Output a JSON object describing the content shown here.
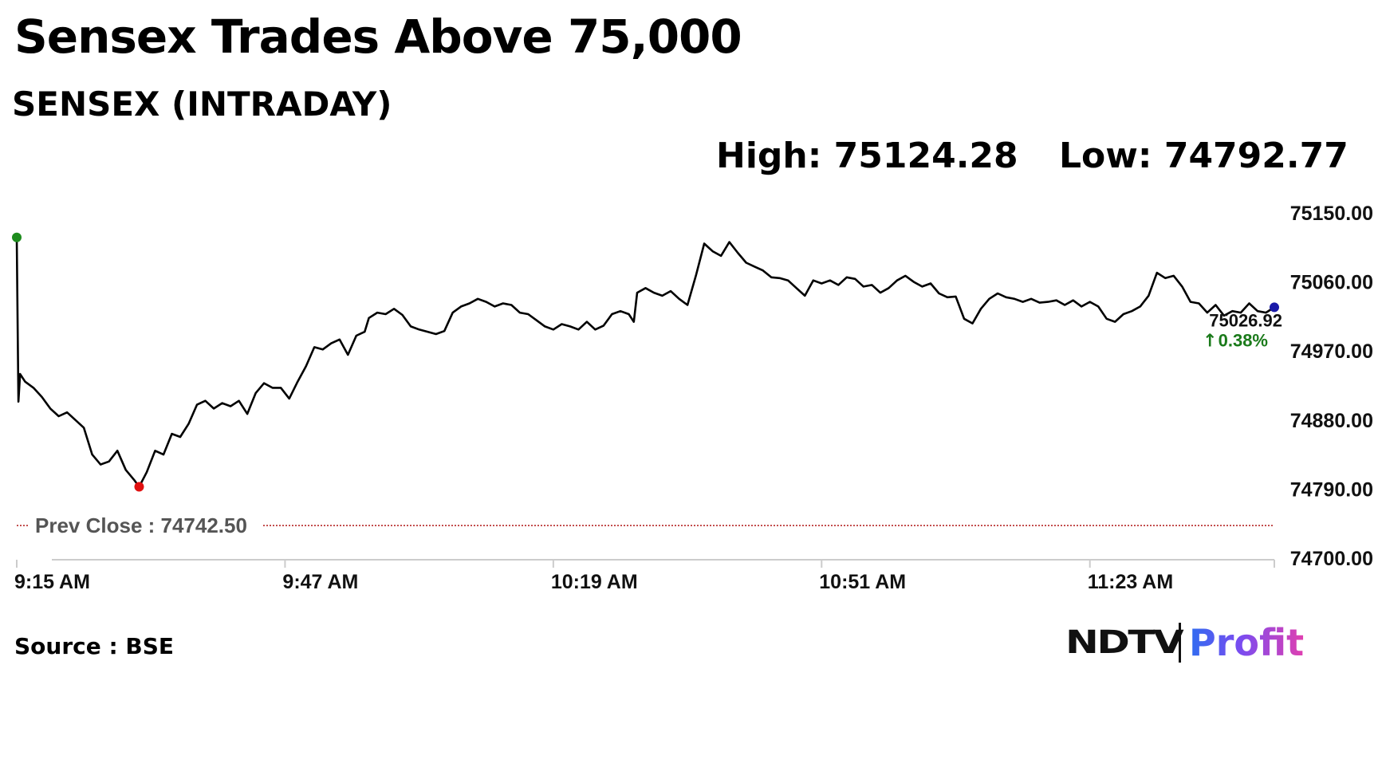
{
  "header": {
    "title": "Sensex Trades Above 75,000",
    "subtitle": "SENSEX (INTRADAY)",
    "high_text": "High: 75124.28",
    "low_text": "Low: 74792.77"
  },
  "footer": {
    "source": "Source : BSE",
    "logo_ndtv": "NDTV",
    "logo_profit": "Profit"
  },
  "colors": {
    "line": "#000000",
    "open_marker": "#1e8c1e",
    "low_marker": "#e01010",
    "last_marker": "#1a1aa8",
    "prev_close_line": "#b01818",
    "change_up": "#1a7a1a",
    "axis": "#cccccc"
  },
  "chart_data": {
    "type": "line",
    "title": "SENSEX (INTRADAY)",
    "xlabel": "",
    "ylabel": "",
    "x_ticks": [
      "9:15 AM",
      "9:47 AM",
      "10:19 AM",
      "10:51 AM",
      "11:23 AM"
    ],
    "x_tick_minutes": [
      555,
      587,
      619,
      651,
      683
    ],
    "y_ticks": [
      "75150.00",
      "75060.00",
      "74970.00",
      "74880.00",
      "74790.00",
      "74700.00"
    ],
    "ylim": [
      74700,
      75150
    ],
    "grid": false,
    "prev_close": 74742.5,
    "prev_close_label": "Prev Close : 74742.50",
    "last_value_label": "75026.92",
    "change_label": "0.38%",
    "change_arrow": "↑",
    "series": [
      {
        "points": [
          [
            555.0,
            75118
          ],
          [
            555.2,
            74904
          ],
          [
            555.4,
            74940
          ],
          [
            556.0,
            74930
          ],
          [
            557.0,
            74922
          ],
          [
            558.0,
            74910
          ],
          [
            559.0,
            74895
          ],
          [
            560.0,
            74885
          ],
          [
            561.0,
            74890
          ],
          [
            562.0,
            74880
          ],
          [
            563.0,
            74870
          ],
          [
            564.0,
            74835
          ],
          [
            565.0,
            74822
          ],
          [
            566.0,
            74826
          ],
          [
            567.0,
            74840
          ],
          [
            568.0,
            74815
          ],
          [
            569.0,
            74802
          ],
          [
            569.6,
            74793
          ],
          [
            570.5,
            74812
          ],
          [
            571.5,
            74840
          ],
          [
            572.5,
            74835
          ],
          [
            573.5,
            74862
          ],
          [
            574.5,
            74858
          ],
          [
            575.5,
            74875
          ],
          [
            576.5,
            74900
          ],
          [
            577.5,
            74905
          ],
          [
            578.5,
            74895
          ],
          [
            579.5,
            74902
          ],
          [
            580.5,
            74898
          ],
          [
            581.5,
            74905
          ],
          [
            582.5,
            74888
          ],
          [
            583.5,
            74915
          ],
          [
            584.5,
            74928
          ],
          [
            585.5,
            74922
          ],
          [
            586.5,
            74922
          ],
          [
            587.5,
            74908
          ],
          [
            588.5,
            74930
          ],
          [
            589.5,
            74950
          ],
          [
            590.5,
            74975
          ],
          [
            591.5,
            74972
          ],
          [
            592.5,
            74980
          ],
          [
            593.5,
            74985
          ],
          [
            594.5,
            74965
          ],
          [
            595.5,
            74990
          ],
          [
            596.5,
            74995
          ],
          [
            597.0,
            75013
          ],
          [
            598.0,
            75020
          ],
          [
            599.0,
            75018
          ],
          [
            600.0,
            75025
          ],
          [
            601.0,
            75017
          ],
          [
            602.0,
            75002
          ],
          [
            603.0,
            74998
          ],
          [
            604.0,
            74995
          ],
          [
            605.0,
            74992
          ],
          [
            606.0,
            74996
          ],
          [
            607.0,
            75020
          ],
          [
            608.0,
            75028
          ],
          [
            609.0,
            75032
          ],
          [
            610.0,
            75038
          ],
          [
            611.0,
            75034
          ],
          [
            612.0,
            75028
          ],
          [
            613.0,
            75032
          ],
          [
            614.0,
            75030
          ],
          [
            615.0,
            75020
          ],
          [
            616.0,
            75018
          ],
          [
            617.0,
            75010
          ],
          [
            618.0,
            75002
          ],
          [
            619.0,
            74998
          ],
          [
            620.0,
            75005
          ],
          [
            621.0,
            75002
          ],
          [
            622.0,
            74998
          ],
          [
            623.0,
            75008
          ],
          [
            624.0,
            74998
          ],
          [
            625.0,
            75003
          ],
          [
            626.0,
            75018
          ],
          [
            627.0,
            75022
          ],
          [
            628.0,
            75018
          ],
          [
            628.6,
            75008
          ],
          [
            629.0,
            75046
          ],
          [
            630.0,
            75052
          ],
          [
            631.0,
            75046
          ],
          [
            632.0,
            75042
          ],
          [
            633.0,
            75048
          ],
          [
            634.0,
            75038
          ],
          [
            635.0,
            75030
          ],
          [
            636.0,
            75068
          ],
          [
            637.0,
            75110
          ],
          [
            638.0,
            75100
          ],
          [
            639.0,
            75094
          ],
          [
            640.0,
            75112
          ],
          [
            641.0,
            75098
          ],
          [
            642.0,
            75085
          ],
          [
            643.0,
            75080
          ],
          [
            644.0,
            75075
          ],
          [
            645.0,
            75066
          ],
          [
            646.0,
            75065
          ],
          [
            647.0,
            75062
          ],
          [
            648.0,
            75052
          ],
          [
            649.0,
            75042
          ],
          [
            650.0,
            75062
          ],
          [
            651.0,
            75058
          ],
          [
            652.0,
            75062
          ],
          [
            653.0,
            75056
          ],
          [
            654.0,
            75066
          ],
          [
            655.0,
            75064
          ],
          [
            656.0,
            75054
          ],
          [
            657.0,
            75056
          ],
          [
            658.0,
            75046
          ],
          [
            659.0,
            75052
          ],
          [
            660.0,
            75062
          ],
          [
            661.0,
            75068
          ],
          [
            662.0,
            75060
          ],
          [
            663.0,
            75054
          ],
          [
            664.0,
            75058
          ],
          [
            665.0,
            75045
          ],
          [
            666.0,
            75040
          ],
          [
            667.0,
            75041
          ],
          [
            668.0,
            75012
          ],
          [
            669.0,
            75006
          ],
          [
            670.0,
            75025
          ],
          [
            671.0,
            75038
          ],
          [
            672.0,
            75045
          ],
          [
            673.0,
            75040
          ],
          [
            674.0,
            75038
          ],
          [
            675.0,
            75034
          ],
          [
            676.0,
            75038
          ],
          [
            677.0,
            75033
          ],
          [
            678.0,
            75034
          ],
          [
            679.0,
            75036
          ],
          [
            680.0,
            75030
          ],
          [
            681.0,
            75036
          ],
          [
            682.0,
            75028
          ],
          [
            683.0,
            75034
          ],
          [
            684.0,
            75028
          ],
          [
            685.0,
            75012
          ],
          [
            686.0,
            75008
          ],
          [
            687.0,
            75018
          ],
          [
            688.0,
            75022
          ],
          [
            689.0,
            75028
          ],
          [
            690.0,
            75042
          ],
          [
            691.0,
            75072
          ],
          [
            692.0,
            75065
          ],
          [
            693.0,
            75068
          ],
          [
            694.0,
            75054
          ],
          [
            695.0,
            75034
          ],
          [
            696.0,
            75032
          ],
          [
            697.0,
            75020
          ],
          [
            698.0,
            75030
          ],
          [
            699.0,
            75016
          ],
          [
            700.0,
            75022
          ],
          [
            701.0,
            75020
          ],
          [
            702.0,
            75032
          ],
          [
            703.0,
            75022
          ],
          [
            704.0,
            75020
          ],
          [
            705.0,
            75026.92
          ]
        ]
      }
    ]
  }
}
